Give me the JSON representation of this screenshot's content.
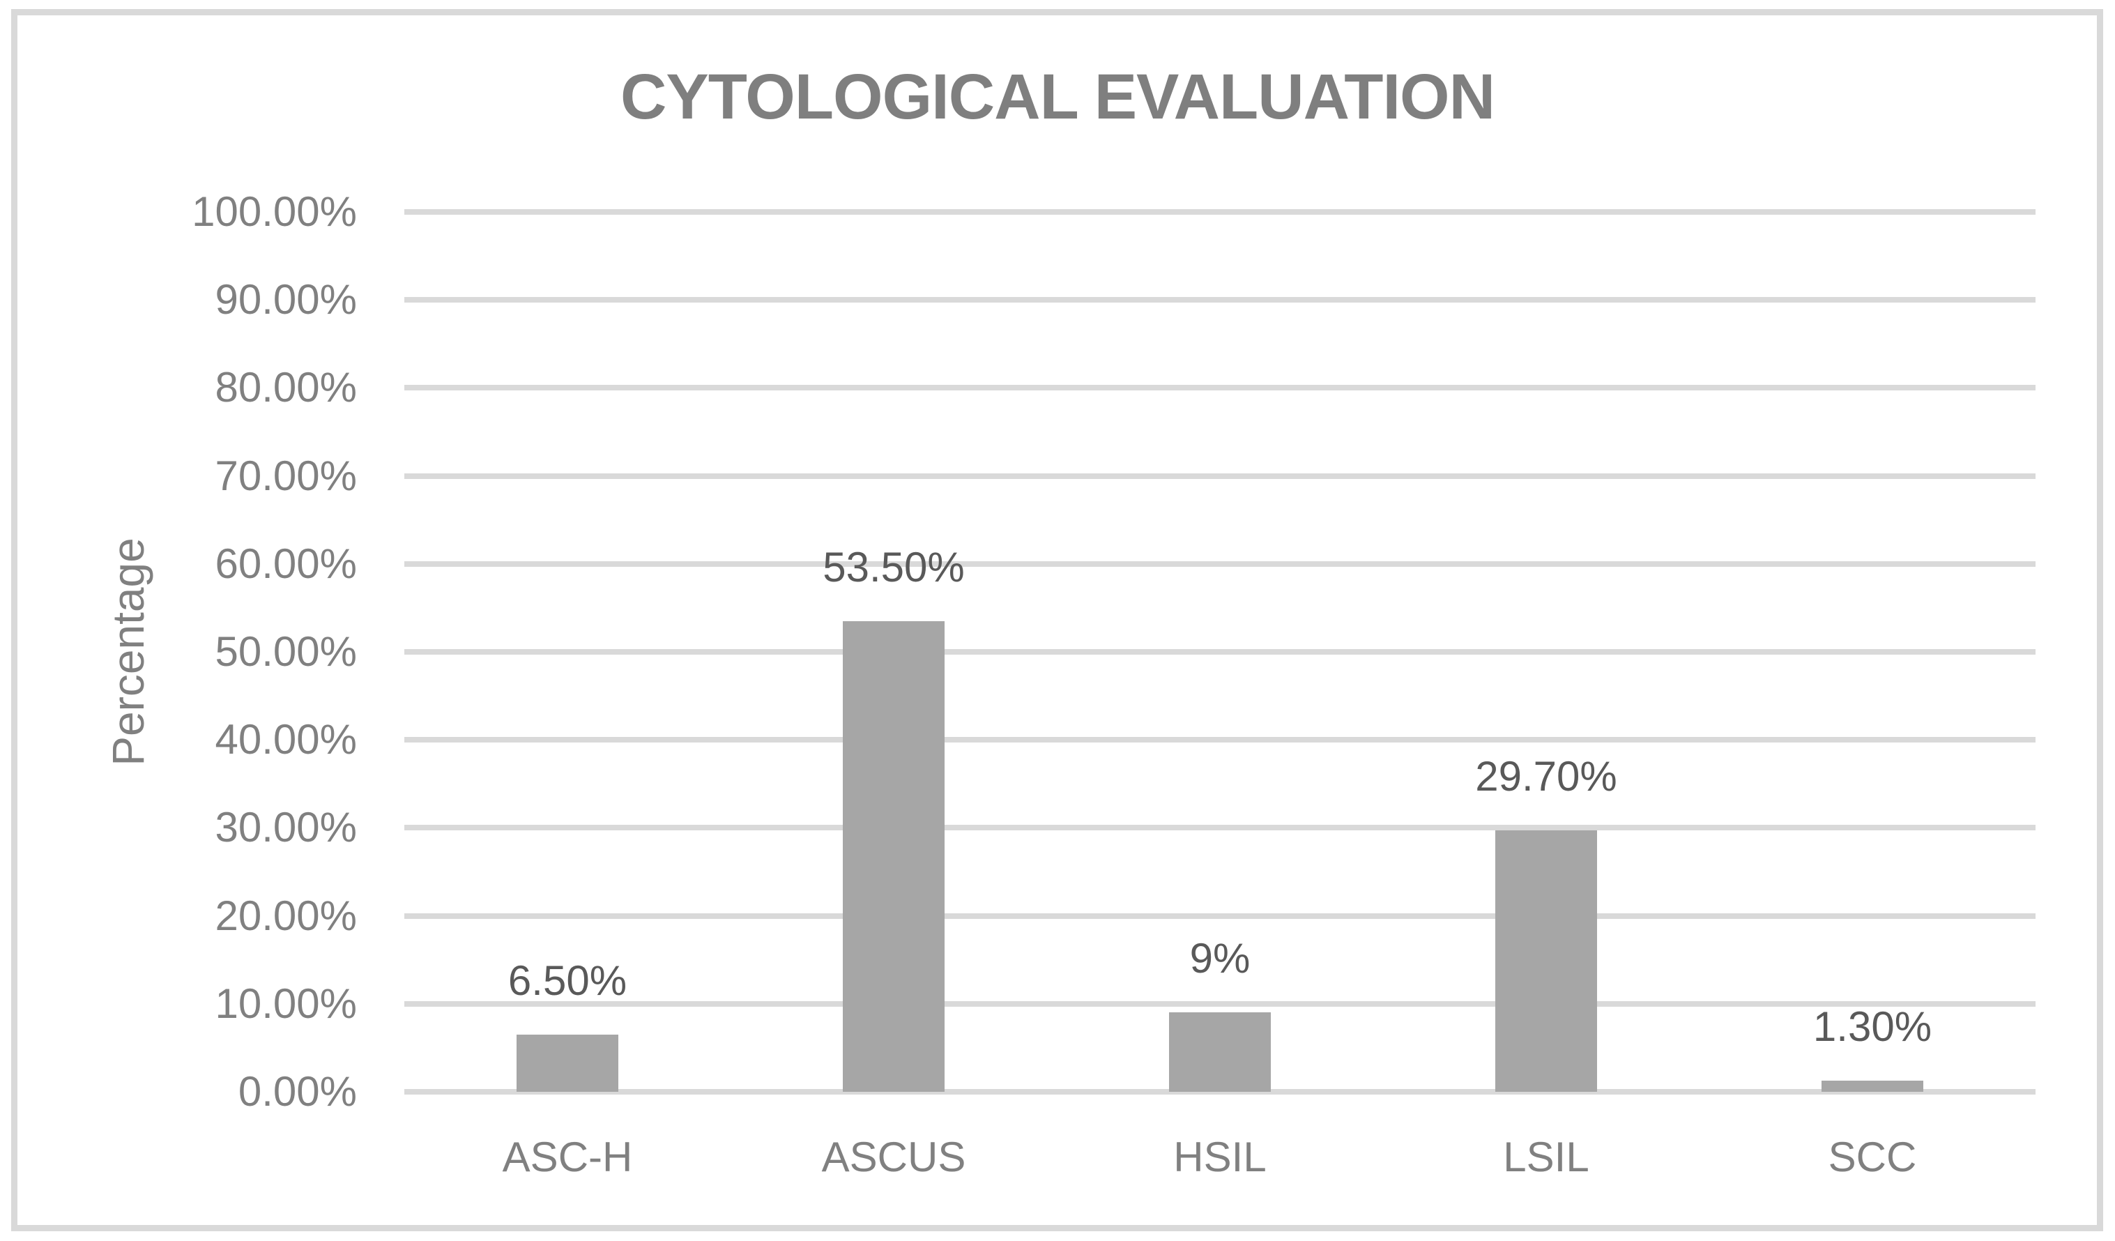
{
  "chart_data": {
    "type": "bar",
    "title": "CYTOLOGICAL EVALUATION",
    "xlabel": "",
    "ylabel": "Percentage",
    "categories": [
      "ASC-H",
      "ASCUS",
      "HSIL",
      "LSIL",
      "SCC"
    ],
    "values": [
      6.5,
      53.5,
      9,
      29.7,
      1.3
    ],
    "value_labels": [
      "6.50%",
      "53.50%",
      "9%",
      "29.70%",
      "1.30%"
    ],
    "ylim": [
      0,
      100
    ],
    "ytick_step": 10,
    "ytick_labels": [
      "0.00%",
      "10.00%",
      "20.00%",
      "30.00%",
      "40.00%",
      "50.00%",
      "60.00%",
      "70.00%",
      "80.00%",
      "90.00%",
      "100.00%"
    ],
    "grid": true,
    "legend": "none",
    "colors": {
      "bar": "#a6a6a6",
      "gridline": "#d9d9d9",
      "frame_border": "#d9d9d9",
      "title_text": "#7f7f7f",
      "axis_text": "#808080",
      "data_label_text": "#595959"
    }
  }
}
